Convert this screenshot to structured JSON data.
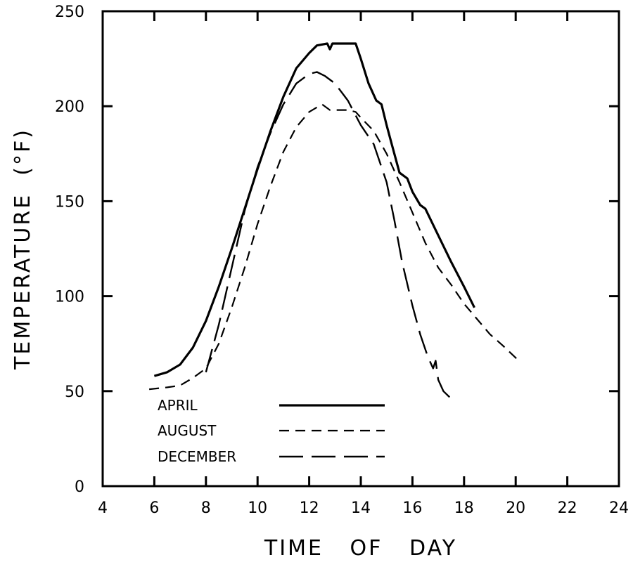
{
  "chart_data": {
    "type": "line",
    "title": "",
    "xlabel": "TIME   OF   DAY",
    "ylabel": "TEMPERATURE  (°F)",
    "xlim": [
      4,
      24
    ],
    "ylim": [
      0,
      250
    ],
    "xticks": [
      4,
      6,
      8,
      10,
      12,
      14,
      16,
      18,
      20,
      22,
      24
    ],
    "yticks": [
      0,
      50,
      100,
      150,
      200,
      250
    ],
    "grid": false,
    "legend_position": "bottom-left",
    "series": [
      {
        "name": "APRIL",
        "style": "solid",
        "color": "#000000",
        "x": [
          6.0,
          6.5,
          7.0,
          7.5,
          8.0,
          8.5,
          9.0,
          9.5,
          10.0,
          10.5,
          11.0,
          11.5,
          12.0,
          12.3,
          12.7,
          12.8,
          12.9,
          13.0,
          13.5,
          13.8,
          14.0,
          14.3,
          14.6,
          14.8,
          15.0,
          15.2,
          15.5,
          15.8,
          16.0,
          16.3,
          16.5,
          17.0,
          17.5,
          18.0,
          18.4
        ],
        "y": [
          58,
          60,
          64,
          73,
          87,
          105,
          125,
          146,
          167,
          187,
          205,
          220,
          228,
          232,
          233,
          230,
          233,
          233,
          233,
          233,
          225,
          212,
          203,
          201,
          190,
          180,
          165,
          162,
          155,
          148,
          146,
          132,
          118,
          105,
          94
        ]
      },
      {
        "name": "AUGUST",
        "style": "dashed",
        "color": "#000000",
        "x": [
          5.8,
          6.5,
          7.0,
          7.5,
          8.0,
          8.5,
          9.0,
          9.5,
          10.0,
          10.5,
          11.0,
          11.5,
          12.0,
          12.5,
          12.8,
          13.0,
          13.5,
          13.8,
          14.0,
          14.5,
          15.0,
          15.5,
          16.0,
          16.5,
          17.0,
          17.5,
          18.0,
          18.5,
          19.0,
          19.5,
          20.2
        ],
        "y": [
          51,
          52,
          53,
          57,
          62,
          75,
          94,
          115,
          138,
          158,
          176,
          189,
          197,
          201,
          198,
          198,
          198,
          197,
          194,
          187,
          175,
          160,
          144,
          128,
          115,
          106,
          96,
          88,
          80,
          74,
          65
        ]
      },
      {
        "name": "DECEMBER",
        "style": "long-dash",
        "color": "#000000",
        "x": [
          8.0,
          8.5,
          9.0,
          9.5,
          10.0,
          10.5,
          11.0,
          11.5,
          12.0,
          12.3,
          12.6,
          13.0,
          13.5,
          14.0,
          14.5,
          15.0,
          15.3,
          15.6,
          16.0,
          16.3,
          16.6,
          16.8,
          16.9,
          17.0,
          17.2,
          17.5
        ],
        "y": [
          60,
          85,
          115,
          145,
          168,
          186,
          201,
          212,
          217,
          218,
          216,
          212,
          203,
          190,
          180,
          160,
          140,
          118,
          95,
          80,
          68,
          62,
          66,
          56,
          50,
          46
        ]
      }
    ]
  }
}
